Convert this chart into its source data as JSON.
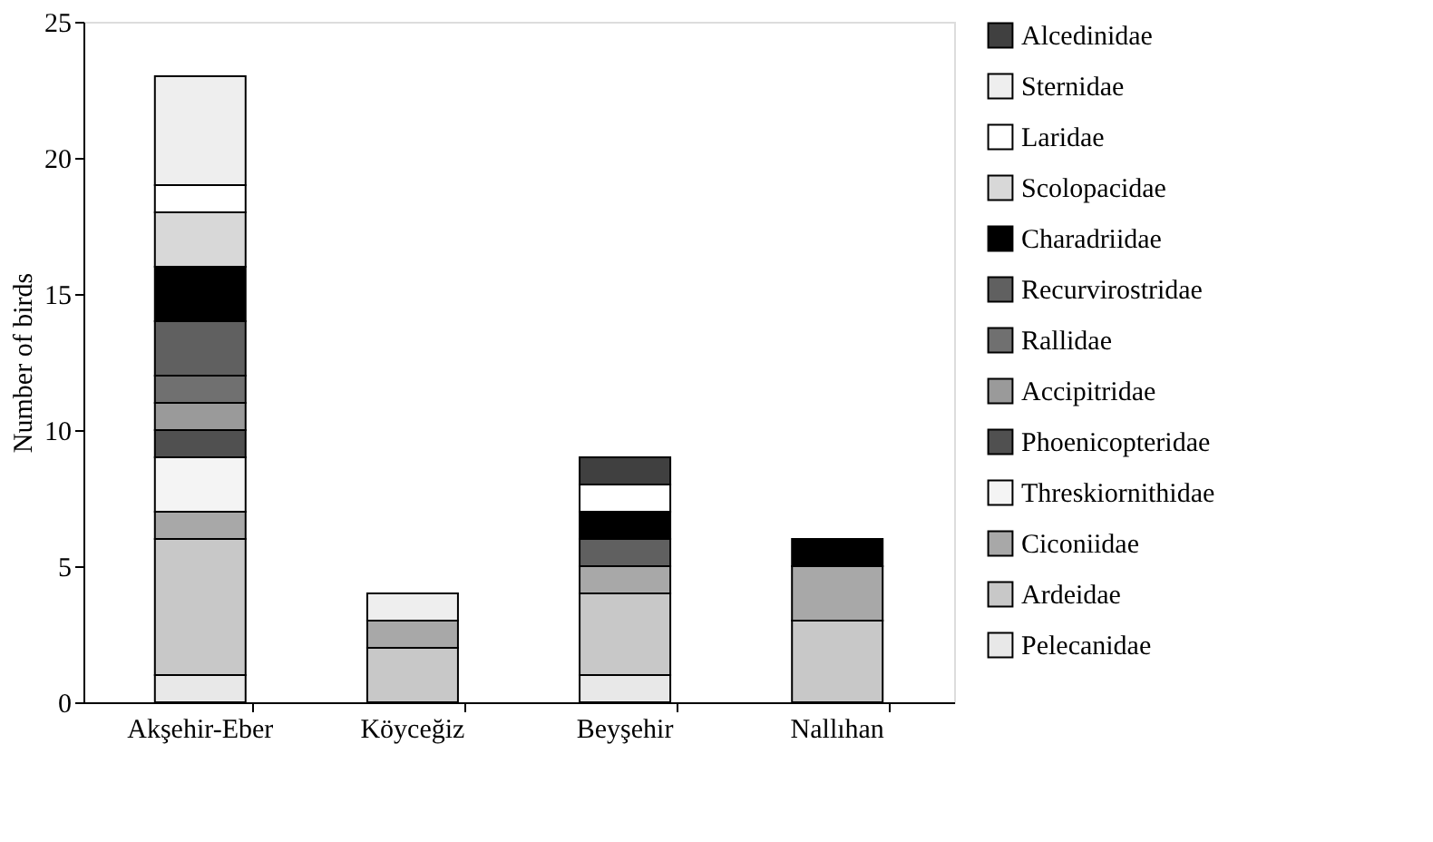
{
  "chart_data": {
    "type": "bar",
    "stacked": true,
    "ylabel": "Number of birds",
    "categories": [
      "Akşehir-Eber",
      "Köyceğiz",
      "Beyşehir",
      "Nallıhan"
    ],
    "ylim": [
      0,
      25
    ],
    "yticks": [
      0,
      5,
      10,
      15,
      20,
      25
    ],
    "grid": false,
    "legend": "right",
    "series": [
      {
        "name": "Pelecanidae",
        "color": "#e8e8e8",
        "values": [
          1,
          null,
          1,
          null
        ]
      },
      {
        "name": "Ardeidae",
        "color": "#c8c8c8",
        "values": [
          5,
          2,
          3,
          3
        ]
      },
      {
        "name": "Ciconiidae",
        "color": "#a8a8a8",
        "values": [
          1,
          1,
          1,
          2
        ]
      },
      {
        "name": "Threskiornithidae",
        "color": "#f4f4f4",
        "values": [
          2,
          null,
          null,
          null
        ]
      },
      {
        "name": "Phoenicopteridae",
        "color": "#505050",
        "values": [
          1,
          null,
          null,
          null
        ]
      },
      {
        "name": "Accipitridae",
        "color": "#9a9a9a",
        "values": [
          1,
          null,
          null,
          null
        ]
      },
      {
        "name": "Rallidae",
        "color": "#707070",
        "values": [
          1,
          null,
          null,
          null
        ]
      },
      {
        "name": "Recurvirostridae",
        "color": "#606060",
        "values": [
          2,
          null,
          1,
          null
        ]
      },
      {
        "name": "Charadriidae",
        "color": "#000000",
        "values": [
          2,
          null,
          1,
          1
        ]
      },
      {
        "name": "Scolopacidae",
        "color": "#d8d8d8",
        "values": [
          2,
          null,
          null,
          null
        ]
      },
      {
        "name": "Laridae",
        "color": "#ffffff",
        "values": [
          1,
          null,
          1,
          null
        ]
      },
      {
        "name": "Sternidae",
        "color": "#eeeeee",
        "values": [
          4,
          1,
          null,
          null
        ]
      },
      {
        "name": "Alcedinidae",
        "color": "#404040",
        "values": [
          null,
          null,
          1,
          null
        ]
      }
    ]
  }
}
